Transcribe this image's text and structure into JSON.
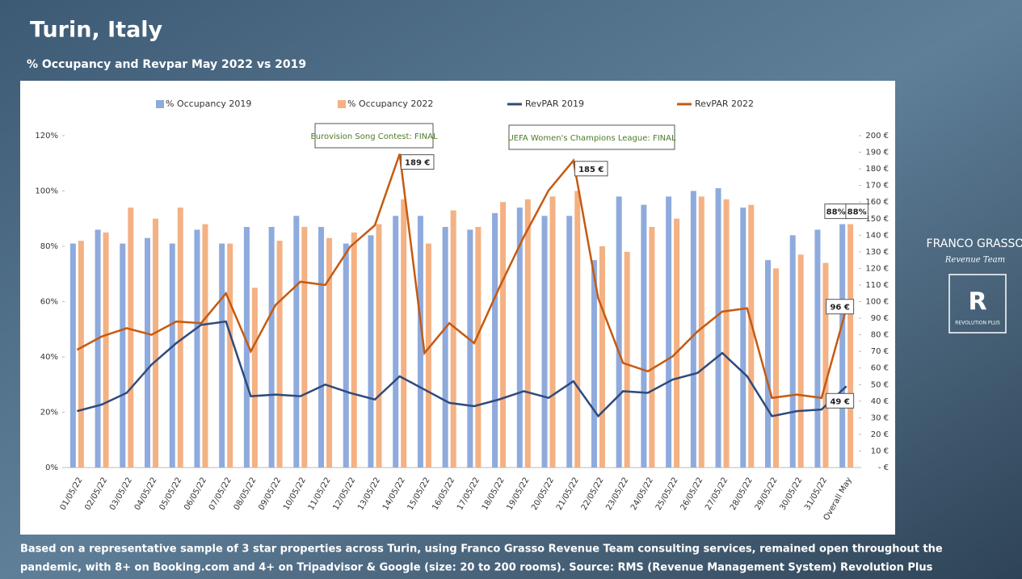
{
  "chart_data": {
    "type": "bar",
    "title": "Turin, Italy",
    "subtitle": "% Occupancy and Revpar May 2022 vs 2019",
    "categories": [
      "01/05/22",
      "02/05/22",
      "03/05/22",
      "04/05/22",
      "05/05/22",
      "06/05/22",
      "07/05/22",
      "08/05/22",
      "09/05/22",
      "10/05/22",
      "11/05/22",
      "12/05/22",
      "13/05/22",
      "14/05/22",
      "15/05/22",
      "16/05/22",
      "17/05/22",
      "18/05/22",
      "19/05/22",
      "20/05/22",
      "21/05/22",
      "22/05/22",
      "23/05/22",
      "24/05/22",
      "25/05/22",
      "26/05/22",
      "27/05/22",
      "28/05/22",
      "29/05/22",
      "30/05/22",
      "31/05/22",
      "Overall May"
    ],
    "series": [
      {
        "name": "% Occupancy 2019",
        "type": "bar",
        "color": "#8faadc",
        "values": [
          81,
          86,
          81,
          83,
          81,
          86,
          81,
          87,
          87,
          91,
          87,
          81,
          84,
          91,
          91,
          87,
          86,
          92,
          94,
          91,
          91,
          75,
          98,
          95,
          98,
          100,
          101,
          94,
          75,
          84,
          86,
          88
        ],
        "value_labels": [
          null,
          null,
          null,
          null,
          null,
          null,
          null,
          null,
          null,
          null,
          null,
          null,
          null,
          null,
          null,
          null,
          null,
          null,
          null,
          null,
          null,
          null,
          null,
          null,
          null,
          null,
          null,
          null,
          null,
          null,
          null,
          "88%"
        ]
      },
      {
        "name": "% Occupancy 2022",
        "type": "bar",
        "color": "#f4b183",
        "values": [
          82,
          85,
          94,
          90,
          94,
          88,
          81,
          65,
          82,
          87,
          83,
          85,
          88,
          97,
          81,
          93,
          87,
          96,
          97,
          98,
          100,
          80,
          78,
          87,
          90,
          98,
          97,
          95,
          72,
          77,
          74,
          88
        ],
        "value_labels": [
          null,
          null,
          null,
          null,
          null,
          null,
          null,
          null,
          null,
          null,
          null,
          null,
          null,
          null,
          null,
          null,
          null,
          null,
          null,
          null,
          null,
          null,
          null,
          null,
          null,
          null,
          null,
          null,
          null,
          null,
          null,
          "88%"
        ]
      },
      {
        "name": "RevPAR 2019",
        "type": "line",
        "axis": "y2",
        "color": "#2f4b7c",
        "values": [
          34,
          38,
          45,
          62,
          75,
          86,
          88,
          43,
          44,
          43,
          50,
          45,
          41,
          55,
          47,
          39,
          37,
          41,
          46,
          42,
          52,
          31,
          46,
          45,
          53,
          57,
          69,
          55,
          31,
          34,
          35,
          49
        ],
        "value_labels": [
          null,
          null,
          null,
          null,
          null,
          null,
          null,
          null,
          null,
          null,
          null,
          null,
          null,
          null,
          null,
          null,
          null,
          null,
          null,
          null,
          null,
          null,
          null,
          null,
          null,
          null,
          null,
          null,
          null,
          null,
          null,
          "49 €"
        ]
      },
      {
        "name": "RevPAR 2022",
        "type": "line",
        "axis": "y2",
        "color": "#c55a11",
        "values": [
          71,
          79,
          84,
          80,
          88,
          87,
          105,
          70,
          98,
          112,
          110,
          133,
          146,
          189,
          69,
          87,
          75,
          108,
          139,
          167,
          185,
          102,
          63,
          58,
          67,
          82,
          94,
          96,
          42,
          44,
          42,
          96
        ],
        "value_labels": [
          null,
          null,
          null,
          null,
          null,
          null,
          null,
          null,
          null,
          null,
          null,
          null,
          null,
          "189 €",
          null,
          null,
          null,
          null,
          null,
          null,
          "185 €",
          null,
          null,
          null,
          null,
          null,
          null,
          null,
          null,
          null,
          null,
          "96 €"
        ]
      }
    ],
    "annotations": [
      "Eurovision Song Contest: FINAL",
      "UEFA Women's Champions League: FINAL"
    ],
    "ylim": [
      0,
      120
    ],
    "yticks": [
      {
        "value": 0,
        "label": "0%"
      },
      {
        "value": 20,
        "label": "20%"
      },
      {
        "value": 40,
        "label": "40%"
      },
      {
        "value": 60,
        "label": "60%"
      },
      {
        "value": 80,
        "label": "80%"
      },
      {
        "value": 100,
        "label": "100%"
      },
      {
        "value": 120,
        "label": "120%"
      }
    ],
    "y2lim": [
      0,
      200
    ],
    "y2ticks": [
      {
        "value": 0,
        "label": "- €"
      },
      {
        "value": 10,
        "label": "10 €"
      },
      {
        "value": 20,
        "label": "20 €"
      },
      {
        "value": 30,
        "label": "30 €"
      },
      {
        "value": 40,
        "label": "40 €"
      },
      {
        "value": 50,
        "label": "50 €"
      },
      {
        "value": 60,
        "label": "60 €"
      },
      {
        "value": 70,
        "label": "70 €"
      },
      {
        "value": 80,
        "label": "80 €"
      },
      {
        "value": 90,
        "label": "90 €"
      },
      {
        "value": 100,
        "label": "100 €"
      },
      {
        "value": 110,
        "label": "110 €"
      },
      {
        "value": 120,
        "label": "120 €"
      },
      {
        "value": 130,
        "label": "130 €"
      },
      {
        "value": 140,
        "label": "140 €"
      },
      {
        "value": 150,
        "label": "150 €"
      },
      {
        "value": 160,
        "label": "160 €"
      },
      {
        "value": 170,
        "label": "170 €"
      },
      {
        "value": 180,
        "label": "180 €"
      },
      {
        "value": 190,
        "label": "190 €"
      },
      {
        "value": 200,
        "label": "200 €"
      }
    ],
    "legend": "top"
  },
  "branding": {
    "company": "FRANCO GRASSO",
    "team": "Revenue Team",
    "logo_letter": "R",
    "product": "REVOLUTION PLUS"
  },
  "footer": [
    "Based on a representative sample of 3 star properties across Turin, using Franco Grasso Revenue Team consulting services, remained open throughout the",
    "pandemic, with 8+ on Booking.com and 4+ on Tripadvisor & Google (size: 20 to 200 rooms). Source: RMS (Revenue Management System) Revolution Plus"
  ]
}
